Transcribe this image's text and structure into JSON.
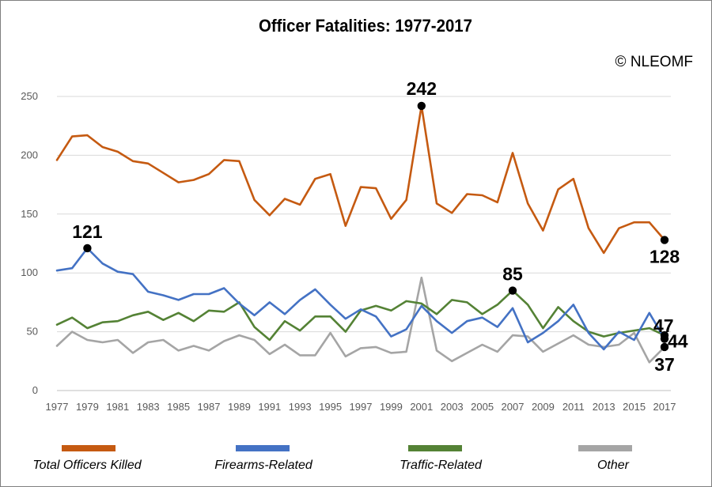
{
  "chart_data": {
    "type": "line",
    "title": "Officer Fatalities: 1977-2017",
    "watermark": "© NLEOMF",
    "xlabel": "",
    "ylabel": "",
    "ylim": [
      0,
      250
    ],
    "yticks": [
      0,
      50,
      100,
      150,
      200,
      250
    ],
    "xticks": [
      1977,
      1979,
      1981,
      1983,
      1985,
      1987,
      1989,
      1991,
      1993,
      1995,
      1997,
      1999,
      2001,
      2003,
      2005,
      2007,
      2009,
      2011,
      2013,
      2015,
      2017
    ],
    "grid": true,
    "legend_position": "bottom",
    "x": [
      1977,
      1978,
      1979,
      1980,
      1981,
      1982,
      1983,
      1984,
      1985,
      1986,
      1987,
      1988,
      1989,
      1990,
      1991,
      1992,
      1993,
      1994,
      1995,
      1996,
      1997,
      1998,
      1999,
      2000,
      2001,
      2002,
      2003,
      2004,
      2005,
      2006,
      2007,
      2008,
      2009,
      2010,
      2011,
      2012,
      2013,
      2014,
      2015,
      2016,
      2017
    ],
    "series": [
      {
        "name": "Total Officers Killed",
        "color": "#c55a11",
        "values": [
          196,
          216,
          217,
          207,
          203,
          195,
          193,
          185,
          177,
          179,
          184,
          196,
          195,
          162,
          149,
          163,
          158,
          180,
          184,
          140,
          173,
          172,
          146,
          162,
          242,
          159,
          151,
          167,
          166,
          160,
          202,
          159,
          136,
          171,
          180,
          138,
          117,
          138,
          143,
          143,
          128
        ],
        "callouts": [
          {
            "x": 2001,
            "label": "242"
          },
          {
            "x": 2017,
            "label": "128"
          }
        ]
      },
      {
        "name": "Firearms-Related",
        "color": "#4472c4",
        "values": [
          102,
          104,
          121,
          108,
          101,
          99,
          84,
          81,
          77,
          82,
          82,
          87,
          74,
          64,
          75,
          65,
          77,
          86,
          73,
          61,
          69,
          63,
          46,
          52,
          72,
          59,
          49,
          59,
          62,
          54,
          70,
          41,
          49,
          59,
          73,
          49,
          35,
          50,
          43,
          66,
          44
        ],
        "callouts": [
          {
            "x": 1979,
            "label": "121"
          },
          {
            "x": 2017,
            "label": "44"
          }
        ]
      },
      {
        "name": "Traffic-Related",
        "color": "#548235",
        "values": [
          56,
          62,
          53,
          58,
          59,
          64,
          67,
          60,
          66,
          59,
          68,
          67,
          75,
          54,
          43,
          59,
          51,
          63,
          63,
          50,
          68,
          72,
          68,
          76,
          74,
          65,
          77,
          75,
          65,
          73,
          85,
          73,
          53,
          71,
          59,
          50,
          46,
          49,
          51,
          53,
          47
        ],
        "callouts": [
          {
            "x": 2007,
            "label": "85"
          },
          {
            "x": 2017,
            "label": "47"
          }
        ]
      },
      {
        "name": "Other",
        "color": "#a5a5a5",
        "values": [
          38,
          50,
          43,
          41,
          43,
          32,
          41,
          43,
          34,
          38,
          34,
          42,
          47,
          43,
          31,
          39,
          30,
          30,
          49,
          29,
          36,
          37,
          32,
          33,
          96,
          34,
          25,
          32,
          39,
          33,
          47,
          46,
          33,
          40,
          47,
          39,
          37,
          39,
          49,
          24,
          37
        ],
        "callouts": [
          {
            "x": 2017,
            "label": "37"
          }
        ]
      }
    ]
  }
}
